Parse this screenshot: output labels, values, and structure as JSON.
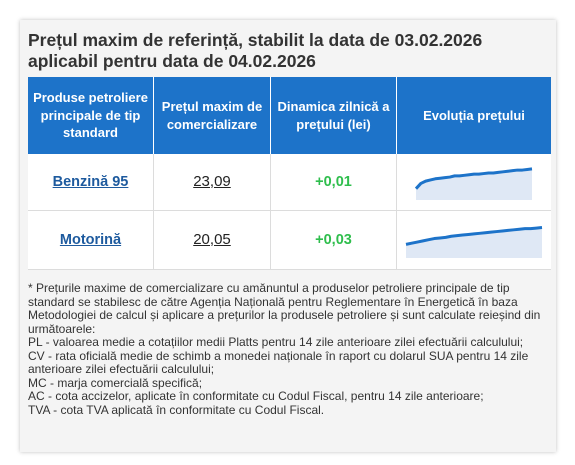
{
  "title_line1": "Prețul maxim de referință, stabilit la data de 03.02.2026",
  "title_line2": "aplicabil pentru data de 04.02.2026",
  "headers": {
    "product": "Produse petroliere principale de tip standard",
    "price": "Prețul maxim de comercializare",
    "change": "Dinamica zilnică a prețului (lei)",
    "trend": "Evoluția prețului"
  },
  "rows": [
    {
      "product": "Benzină 95",
      "price": "23,09",
      "change": "+0,01",
      "trend_values": [
        16,
        25,
        29,
        31,
        33,
        34,
        35,
        36,
        38,
        38,
        39,
        40,
        41,
        41,
        42,
        43,
        43,
        44,
        45,
        46,
        47,
        48,
        48,
        49,
        50
      ]
    },
    {
      "product": "Motorină",
      "price": "20,05",
      "change": "+0,03",
      "trend_values": [
        20,
        22,
        24,
        26,
        28,
        30,
        31,
        32,
        34,
        35,
        36,
        37,
        38,
        39,
        40,
        41,
        42,
        43,
        44,
        45,
        46,
        47,
        47,
        48,
        49
      ]
    }
  ],
  "colors": {
    "header_bg": "#1d73c9",
    "link": "#1d5a9e",
    "positive": "#2fbe4d",
    "trend_line": "#1d73c9",
    "trend_fill": "#dfe8f5"
  },
  "notes": [
    "* Prețurile maxime de comercializare cu amănuntul a produselor petroliere principale de tip standard se stabilesc de către Agenția Națională pentru Reglementare în Energetică în baza Metodologiei de calcul și aplicare a prețurilor la produsele petroliere și sunt calculate reieșind din următoarele:",
    "PL - valoarea medie a cotațiilor medii Platts pentru 14 zile anterioare zilei efectuării calculului;",
    "CV - rata oficială medie de schimb a monedei naționale în raport cu dolarul SUA pentru 14 zile anterioare zilei efectuării calculului;",
    "MC - marja comercială specifică;",
    "AC - cota accizelor, aplicate în conformitate cu Codul Fiscal, pentru 14 zile anterioare;",
    "TVA - cota TVA aplicată în conformitate cu Codul Fiscal."
  ]
}
